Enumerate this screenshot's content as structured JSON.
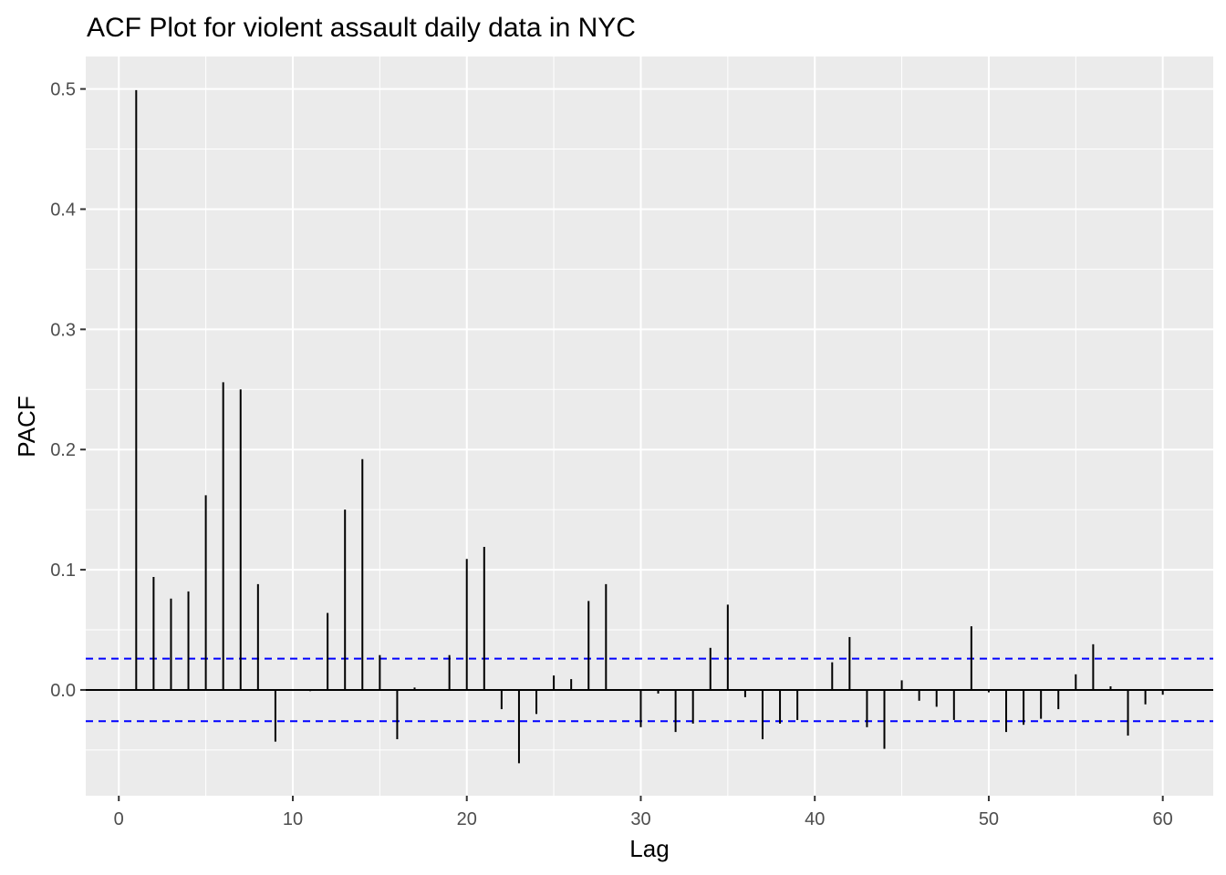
{
  "chart_data": {
    "type": "bar",
    "title": "ACF Plot for violent assault daily data in NYC",
    "xlabel": "Lag",
    "ylabel": "PACF",
    "xlim": [
      -1.9,
      62.9
    ],
    "ylim": [
      -0.088,
      0.527
    ],
    "x_ticks": [
      0,
      10,
      20,
      30,
      40,
      50,
      60
    ],
    "x_tick_labels": [
      "0",
      "10",
      "20",
      "30",
      "40",
      "50",
      "60"
    ],
    "y_ticks": [
      0.0,
      0.1,
      0.2,
      0.3,
      0.4,
      0.5
    ],
    "y_tick_labels": [
      "0.0",
      "0.1",
      "0.2",
      "0.3",
      "0.4",
      "0.5"
    ],
    "grid": true,
    "background_color": "#ebebeb",
    "grid_color": "#ffffff",
    "bar_color": "#000000",
    "zero_line_color": "#000000",
    "confidence_line_color": "#0000ff",
    "confidence_bounds": [
      0.026,
      -0.026
    ],
    "x": [
      1,
      2,
      3,
      4,
      5,
      6,
      7,
      8,
      9,
      10,
      11,
      12,
      13,
      14,
      15,
      16,
      17,
      18,
      19,
      20,
      21,
      22,
      23,
      24,
      25,
      26,
      27,
      28,
      29,
      30,
      31,
      32,
      33,
      34,
      35,
      36,
      37,
      38,
      39,
      40,
      41,
      42,
      43,
      44,
      45,
      46,
      47,
      48,
      49,
      50,
      51,
      52,
      53,
      54,
      55,
      56,
      57,
      58,
      59,
      60
    ],
    "values": [
      0.499,
      0.094,
      0.076,
      0.082,
      0.162,
      0.256,
      0.25,
      0.088,
      -0.043,
      0.0,
      -0.001,
      0.064,
      0.15,
      0.192,
      0.029,
      -0.041,
      0.002,
      0.0,
      0.029,
      0.109,
      0.119,
      -0.016,
      -0.061,
      -0.02,
      0.012,
      0.009,
      0.074,
      0.088,
      0.0,
      -0.031,
      -0.003,
      -0.035,
      -0.028,
      0.035,
      0.071,
      -0.006,
      -0.041,
      -0.028,
      -0.025,
      0.0,
      0.023,
      0.044,
      -0.031,
      -0.049,
      0.008,
      -0.009,
      -0.014,
      -0.025,
      0.053,
      -0.002,
      -0.035,
      -0.029,
      -0.024,
      -0.016,
      0.013,
      0.038,
      0.003,
      -0.038,
      -0.012,
      -0.004
    ]
  }
}
